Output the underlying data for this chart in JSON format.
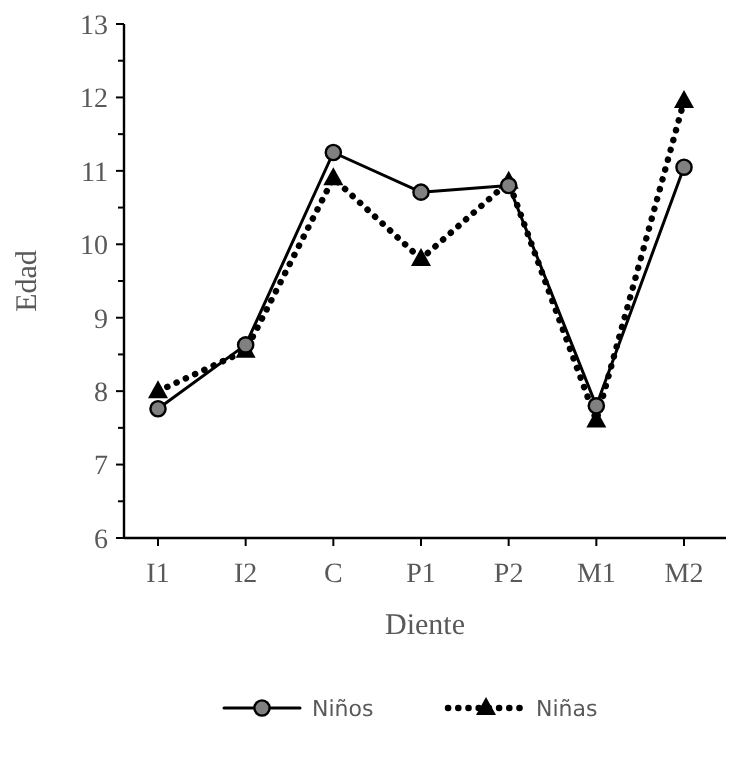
{
  "chart_data": {
    "type": "line",
    "xlabel": "Diente",
    "ylabel": "Edad",
    "categories": [
      "I1",
      "I2",
      "C",
      "P1",
      "P2",
      "M1",
      "M2"
    ],
    "ylim": [
      6,
      13
    ],
    "yticks": [
      6,
      7,
      8,
      9,
      10,
      11,
      12,
      13
    ],
    "grid": false,
    "legend": "bottom",
    "series": [
      {
        "name": "Niños",
        "color": "#000000",
        "marker": "circle",
        "line_style": "solid",
        "values": [
          7.76,
          8.63,
          11.25,
          10.71,
          10.8,
          7.8,
          11.05
        ]
      },
      {
        "name": "Niñas",
        "color": "#000000",
        "marker": "triangle",
        "line_style": "dotted",
        "values": [
          8.0,
          8.55,
          10.9,
          9.8,
          10.85,
          7.6,
          11.95
        ]
      }
    ]
  }
}
